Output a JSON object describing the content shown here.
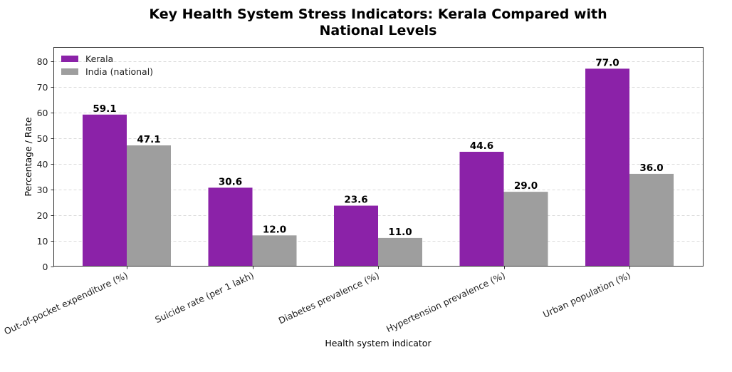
{
  "chart_data": {
    "type": "bar",
    "title": "Key Health System Stress Indicators: Kerala Compared with National Levels",
    "title_lines": [
      "Key Health System Stress Indicators: Kerala Compared with",
      "National Levels"
    ],
    "xlabel": "Health system indicator",
    "ylabel": "Percentage / Rate",
    "categories": [
      "Out-of-pocket expenditure (%)",
      "Suicide rate (per 1 lakh)",
      "Diabetes prevalence (%)",
      "Hypertension prevalence (%)",
      "Urban population (%)"
    ],
    "series": [
      {
        "name": "Kerala",
        "color": "#8b22a8",
        "values": [
          59.1,
          30.6,
          23.6,
          44.6,
          77.0
        ]
      },
      {
        "name": "India (national)",
        "color": "#9e9e9e",
        "values": [
          47.1,
          12.0,
          11.0,
          29.0,
          36.0
        ]
      }
    ],
    "ylim": [
      0,
      85.3
    ],
    "yticks": [
      0,
      10,
      20,
      30,
      40,
      50,
      60,
      70,
      80
    ],
    "grid": true,
    "legend_position": "top-left",
    "value_label_format": "one-decimal"
  }
}
